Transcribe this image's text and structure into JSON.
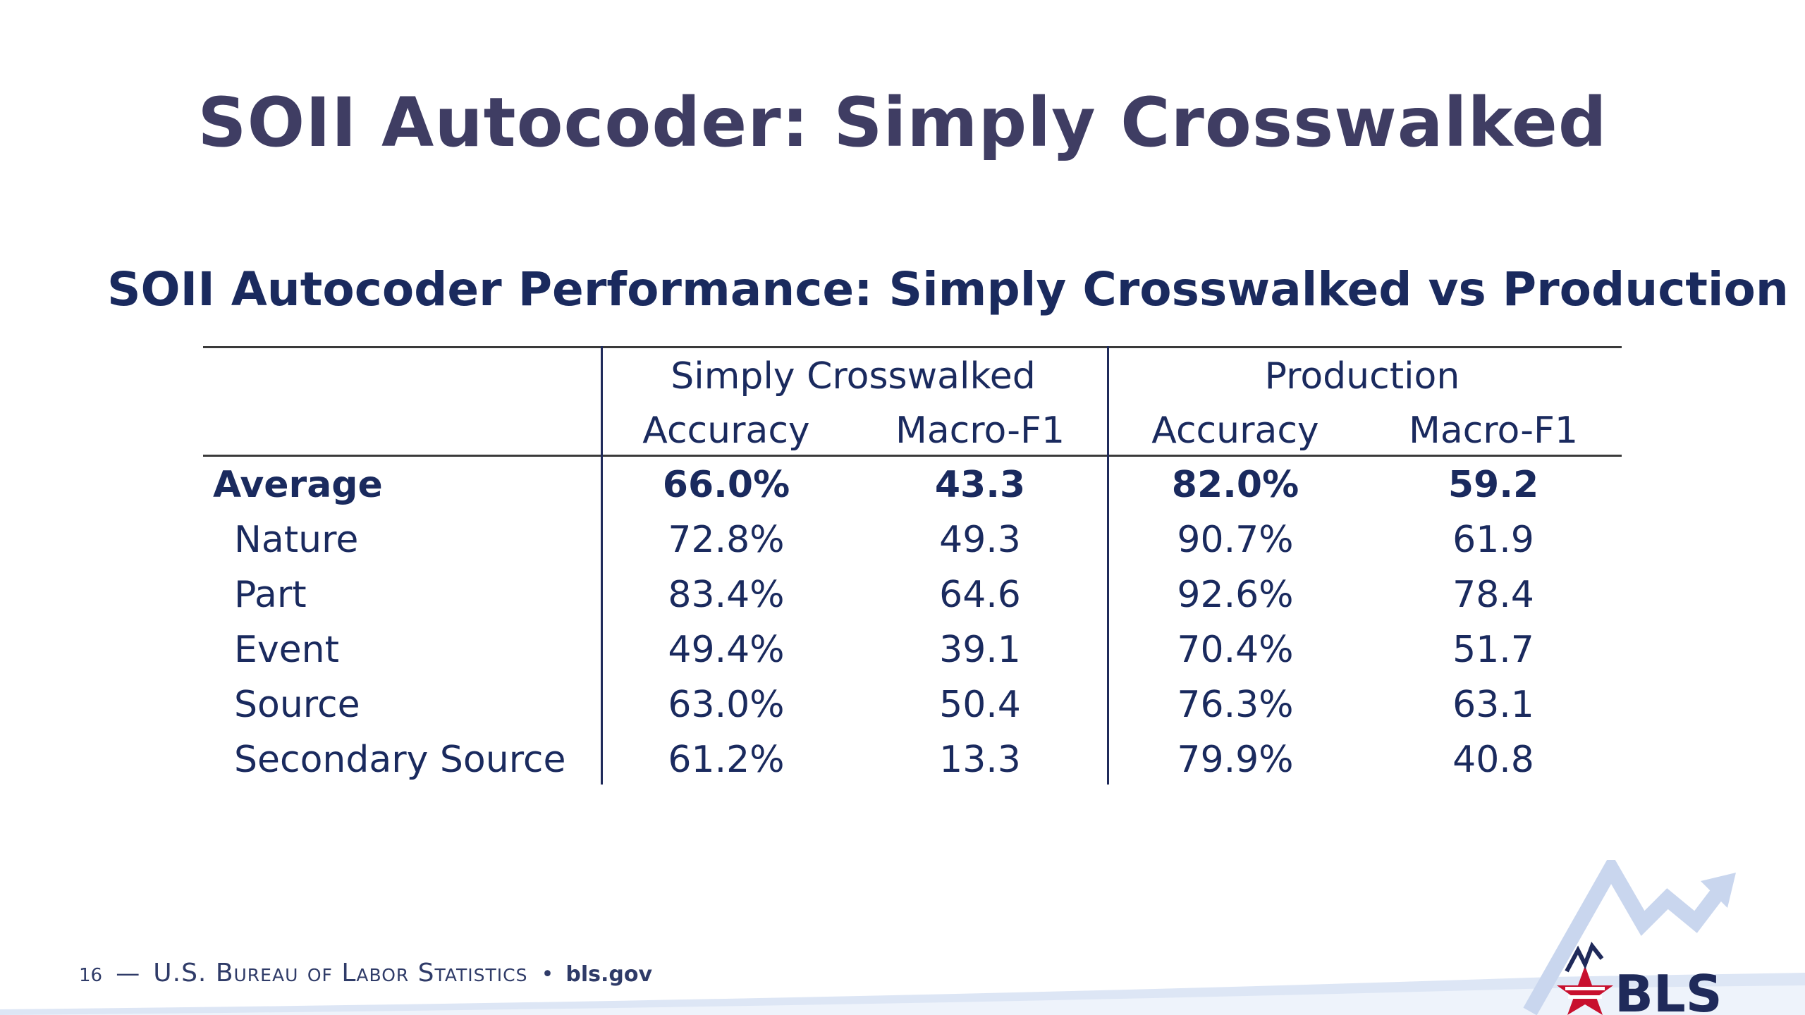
{
  "slide": {
    "title": "SOII Autocoder: Simply Crosswalked"
  },
  "table": {
    "heading": "SOII Autocoder Performance: Simply Crosswalked vs Production",
    "groups": [
      {
        "label": "Simply Crosswalked"
      },
      {
        "label": "Production"
      }
    ],
    "subheaders": [
      "Accuracy",
      "Macro-F1",
      "Accuracy",
      "Macro-F1"
    ],
    "rows": [
      {
        "label": "Average",
        "bold": true,
        "values": [
          "66.0%",
          "43.3",
          "82.0%",
          "59.2"
        ]
      },
      {
        "label": "Nature",
        "bold": false,
        "values": [
          "72.8%",
          "49.3",
          "90.7%",
          "61.9"
        ]
      },
      {
        "label": "Part",
        "bold": false,
        "values": [
          "83.4%",
          "64.6",
          "92.6%",
          "78.4"
        ]
      },
      {
        "label": "Event",
        "bold": false,
        "values": [
          "49.4%",
          "39.1",
          "70.4%",
          "51.7"
        ]
      },
      {
        "label": "Source",
        "bold": false,
        "values": [
          "63.0%",
          "50.4",
          "76.3%",
          "63.1"
        ]
      },
      {
        "label": "Secondary Source",
        "bold": false,
        "values": [
          "61.2%",
          "13.3",
          "79.9%",
          "40.8"
        ]
      }
    ]
  },
  "footer": {
    "page_number": "16",
    "dash": "—",
    "organization": "U.S. Bureau of Labor Statistics",
    "separator": "•",
    "website": "bls.gov"
  },
  "logo": {
    "text": "BLS",
    "icon": "bls-star-logo-icon"
  },
  "colors": {
    "title": "#3f3d63",
    "heading": "#1a2a5e",
    "body_text": "#1a2a5e",
    "logo_red": "#c8102e",
    "logo_navy": "#1f2a5a",
    "swoosh": "#c9d6ee"
  }
}
